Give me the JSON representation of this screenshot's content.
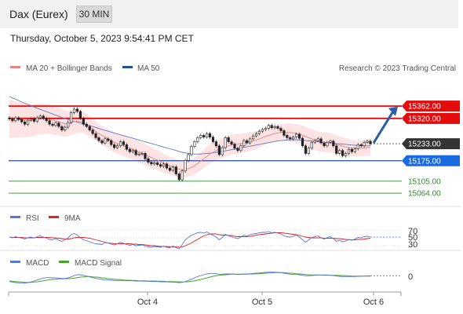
{
  "header": {
    "title": "Dax (Eurex)",
    "interval": "30 MIN"
  },
  "timestamp": "Thursday, October 5, 2023 9:54:41 PM CET",
  "copyright": "Research © 2023 Trading Central",
  "colors": {
    "resistance": "#e30b0b",
    "support": "#1f4e9c",
    "target": "#2a8c2a",
    "bollinger_fill": "#fde3e3",
    "ma20": "#f08080",
    "ma50": "#5a7fc0",
    "rsi": "#5577dd",
    "rsi_ma": "#dd2222",
    "macd": "#5577dd",
    "macd_signal": "#44aa22",
    "current_tag": "#333333",
    "support_tag": "#1a6be0",
    "arrow": "#2b5ca8"
  },
  "chart_data": [
    {
      "type": "candlestick",
      "panel": "price",
      "legend": [
        "MA 20 + Bollinger Bands",
        "MA 50"
      ],
      "x_ticks": [
        "Oct 4",
        "Oct 5",
        "Oct 6"
      ],
      "ylim": [
        15040,
        15470
      ],
      "levels": [
        {
          "value": 15362.0,
          "label": "15362.00",
          "kind": "resistance"
        },
        {
          "value": 15320.0,
          "label": "15320.00",
          "kind": "resistance"
        },
        {
          "value": 15233.0,
          "label": "15233.00",
          "kind": "current"
        },
        {
          "value": 15175.0,
          "label": "15175.00",
          "kind": "pivot"
        },
        {
          "value": 15105.0,
          "label": "15105.00",
          "kind": "target"
        },
        {
          "value": 15064.0,
          "label": "15064.00",
          "kind": "target"
        }
      ],
      "close": [
        15318,
        15312,
        15322,
        15316,
        15308,
        15300,
        15314,
        15318,
        15310,
        15322,
        15328,
        15320,
        15312,
        15300,
        15296,
        15304,
        15292,
        15280,
        15290,
        15306,
        15340,
        15352,
        15344,
        15320,
        15300,
        15292,
        15280,
        15268,
        15254,
        15244,
        15236,
        15250,
        15244,
        15230,
        15220,
        15226,
        15240,
        15230,
        15214,
        15206,
        15210,
        15196,
        15198,
        15200,
        15182,
        15170,
        15164,
        15168,
        15162,
        15156,
        15164,
        15150,
        15142,
        15154,
        15130,
        15110,
        15140,
        15176,
        15196,
        15224,
        15240,
        15254,
        15262,
        15256,
        15268,
        15256,
        15240,
        15226,
        15196,
        15220,
        15254,
        15240,
        15232,
        15218,
        15210,
        15226,
        15244,
        15236,
        15250,
        15260,
        15268,
        15276,
        15282,
        15286,
        15296,
        15288,
        15292,
        15286,
        15278,
        15262,
        15254,
        15250,
        15256,
        15266,
        15252,
        15226,
        15200,
        15218,
        15238,
        15244,
        15250,
        15236,
        15226,
        15238,
        15242,
        15226,
        15200,
        15210,
        15192,
        15200,
        15214,
        15206,
        15216,
        15230,
        15226,
        15238,
        15242,
        15233
      ],
      "ma20": [
        15318,
        15318,
        15317,
        15316,
        15315,
        15314,
        15313,
        15313,
        15314,
        15316,
        15318,
        15318,
        15318,
        15316,
        15314,
        15311,
        15308,
        15305,
        15302,
        15302,
        15305,
        15309,
        15310,
        15309,
        15306,
        15300,
        15292,
        15284,
        15276,
        15268,
        15262,
        15256,
        15250,
        15244,
        15238,
        15234,
        15230,
        15226,
        15222,
        15218,
        15214,
        15210,
        15205,
        15201,
        15196,
        15191,
        15186,
        15181,
        15177,
        15172,
        15166,
        15162,
        15158,
        15154,
        15150,
        15146,
        15144,
        15145,
        15148,
        15152,
        15158,
        15166,
        15174,
        15182,
        15190,
        15198,
        15204,
        15210,
        15214,
        15218,
        15222,
        15226,
        15230,
        15232,
        15232,
        15234,
        15236,
        15238,
        15240,
        15242,
        15246,
        15250,
        15254,
        15258,
        15262,
        15265,
        15268,
        15270,
        15272,
        15272,
        15272,
        15272,
        15270,
        15268,
        15266,
        15262,
        15258,
        15254,
        15250,
        15246,
        15242,
        15240,
        15238,
        15238,
        15236,
        15234,
        15230,
        15228,
        15225,
        15222,
        15220,
        15218,
        15217,
        15217,
        15218,
        15219,
        15220,
        15221
      ],
      "ma50": [
        15395,
        15390,
        15386,
        15381,
        15376,
        15372,
        15368,
        15363,
        15359,
        15355,
        15351,
        15347,
        15343,
        15339,
        15335,
        15331,
        15327,
        15323,
        15320,
        15316,
        15313,
        15310,
        15307,
        15304,
        15301,
        15298,
        15295,
        15292,
        15289,
        15285,
        15282,
        15279,
        15276,
        15273,
        15270,
        15267,
        15264,
        15261,
        15258,
        15255,
        15252,
        15249,
        15246,
        15243,
        15240,
        15237,
        15234,
        15231,
        15228,
        15225,
        15222,
        15219,
        15216,
        15213,
        15210,
        15207,
        15204,
        15202,
        15200,
        15199,
        15198,
        15198,
        15198,
        15199,
        15200,
        15201,
        15202,
        15204,
        15205,
        15207,
        15209,
        15211,
        15213,
        15215,
        15217,
        15219,
        15221,
        15223,
        15225,
        15227,
        15229,
        15231,
        15233,
        15235,
        15237,
        15239,
        15241,
        15243,
        15244,
        15245,
        15246,
        15247,
        15247,
        15247,
        15246,
        15245,
        15244,
        15243,
        15242,
        15241,
        15240,
        15239,
        15238,
        15237,
        15236,
        15235,
        15234,
        15233,
        15232,
        15231,
        15230,
        15229,
        15228,
        15227,
        15226,
        15226,
        15226,
        15226
      ]
    },
    {
      "type": "line",
      "panel": "rsi",
      "legend": [
        "RSI",
        "9MA"
      ],
      "y_ticks": [
        "70",
        "50",
        "30"
      ],
      "ylim": [
        20,
        80
      ],
      "rsi": [
        52,
        50,
        53,
        51,
        49,
        47,
        51,
        52,
        50,
        53,
        55,
        52,
        49,
        46,
        45,
        48,
        44,
        41,
        45,
        50,
        58,
        61,
        57,
        50,
        45,
        43,
        40,
        37,
        35,
        34,
        33,
        38,
        37,
        34,
        32,
        35,
        39,
        36,
        33,
        31,
        33,
        30,
        31,
        32,
        29,
        27,
        26,
        28,
        27,
        26,
        29,
        26,
        25,
        29,
        25,
        22,
        33,
        45,
        51,
        57,
        60,
        63,
        64,
        62,
        65,
        61,
        56,
        52,
        45,
        51,
        59,
        55,
        53,
        50,
        48,
        52,
        57,
        55,
        58,
        60,
        61,
        63,
        64,
        64,
        66,
        63,
        64,
        62,
        60,
        55,
        53,
        52,
        54,
        57,
        52,
        45,
        39,
        45,
        51,
        53,
        55,
        50,
        47,
        51,
        53,
        48,
        41,
        44,
        40,
        42,
        46,
        44,
        47,
        51,
        50,
        53,
        54,
        52
      ],
      "ma9": [
        52,
        51,
        51,
        51,
        51,
        50,
        50,
        50,
        50,
        51,
        51,
        51,
        51,
        51,
        50,
        50,
        49,
        48,
        47,
        47,
        48,
        50,
        51,
        51,
        51,
        50,
        49,
        47,
        45,
        43,
        41,
        39,
        37,
        36,
        35,
        35,
        35,
        35,
        35,
        35,
        34,
        34,
        33,
        33,
        32,
        31,
        30,
        30,
        29,
        28,
        28,
        28,
        27,
        27,
        27,
        26,
        27,
        30,
        33,
        37,
        42,
        46,
        51,
        55,
        58,
        60,
        60,
        60,
        58,
        57,
        57,
        56,
        56,
        54,
        53,
        53,
        53,
        53,
        54,
        55,
        57,
        58,
        59,
        60,
        61,
        62,
        63,
        63,
        63,
        62,
        61,
        60,
        59,
        58,
        56,
        54,
        52,
        51,
        50,
        50,
        50,
        50,
        49,
        49,
        49,
        49,
        48,
        48,
        47,
        46,
        45,
        45,
        45,
        46,
        46,
        47,
        48,
        49
      ]
    },
    {
      "type": "line",
      "panel": "macd",
      "legend": [
        "MACD",
        "MACD Signal"
      ],
      "y_ticks": [
        "0"
      ],
      "ylim": [
        -60,
        60
      ],
      "macd": [
        -20,
        -22,
        -24,
        -25,
        -26,
        -26,
        -24,
        -21,
        -18,
        -14,
        -10,
        -7,
        -5,
        -5,
        -6,
        -6,
        -7,
        -8,
        -8,
        -6,
        -2,
        3,
        6,
        6,
        4,
        1,
        -2,
        -5,
        -8,
        -10,
        -12,
        -13,
        -14,
        -15,
        -16,
        -16,
        -16,
        -16,
        -17,
        -17,
        -17,
        -18,
        -18,
        -18,
        -19,
        -19,
        -20,
        -20,
        -20,
        -21,
        -21,
        -21,
        -22,
        -22,
        -23,
        -24,
        -23,
        -20,
        -16,
        -11,
        -6,
        -1,
        3,
        6,
        9,
        11,
        11,
        10,
        8,
        8,
        9,
        9,
        9,
        8,
        7,
        8,
        9,
        9,
        10,
        11,
        12,
        13,
        14,
        15,
        16,
        16,
        16,
        15,
        14,
        12,
        10,
        8,
        7,
        7,
        6,
        4,
        2,
        2,
        3,
        4,
        5,
        5,
        4,
        4,
        4,
        3,
        1,
        0,
        -1,
        -1,
        -1,
        -1,
        -1,
        0,
        0,
        1,
        2,
        2
      ],
      "signal": [
        -18,
        -19,
        -20,
        -21,
        -22,
        -23,
        -23,
        -23,
        -22,
        -21,
        -19,
        -17,
        -15,
        -13,
        -12,
        -11,
        -10,
        -10,
        -9,
        -9,
        -8,
        -7,
        -5,
        -3,
        -2,
        -1,
        -1,
        -2,
        -3,
        -4,
        -6,
        -7,
        -9,
        -10,
        -11,
        -12,
        -13,
        -14,
        -15,
        -15,
        -16,
        -16,
        -17,
        -17,
        -17,
        -18,
        -18,
        -18,
        -19,
        -19,
        -19,
        -20,
        -20,
        -20,
        -21,
        -21,
        -22,
        -21,
        -21,
        -19,
        -17,
        -15,
        -12,
        -9,
        -6,
        -3,
        0,
        2,
        4,
        5,
        6,
        7,
        8,
        8,
        8,
        8,
        8,
        8,
        9,
        9,
        10,
        10,
        11,
        12,
        13,
        13,
        14,
        14,
        14,
        14,
        13,
        12,
        11,
        10,
        9,
        8,
        7,
        6,
        5,
        5,
        5,
        5,
        5,
        5,
        4,
        4,
        4,
        3,
        3,
        2,
        2,
        1,
        1,
        1,
        1,
        1,
        1,
        1
      ]
    }
  ]
}
